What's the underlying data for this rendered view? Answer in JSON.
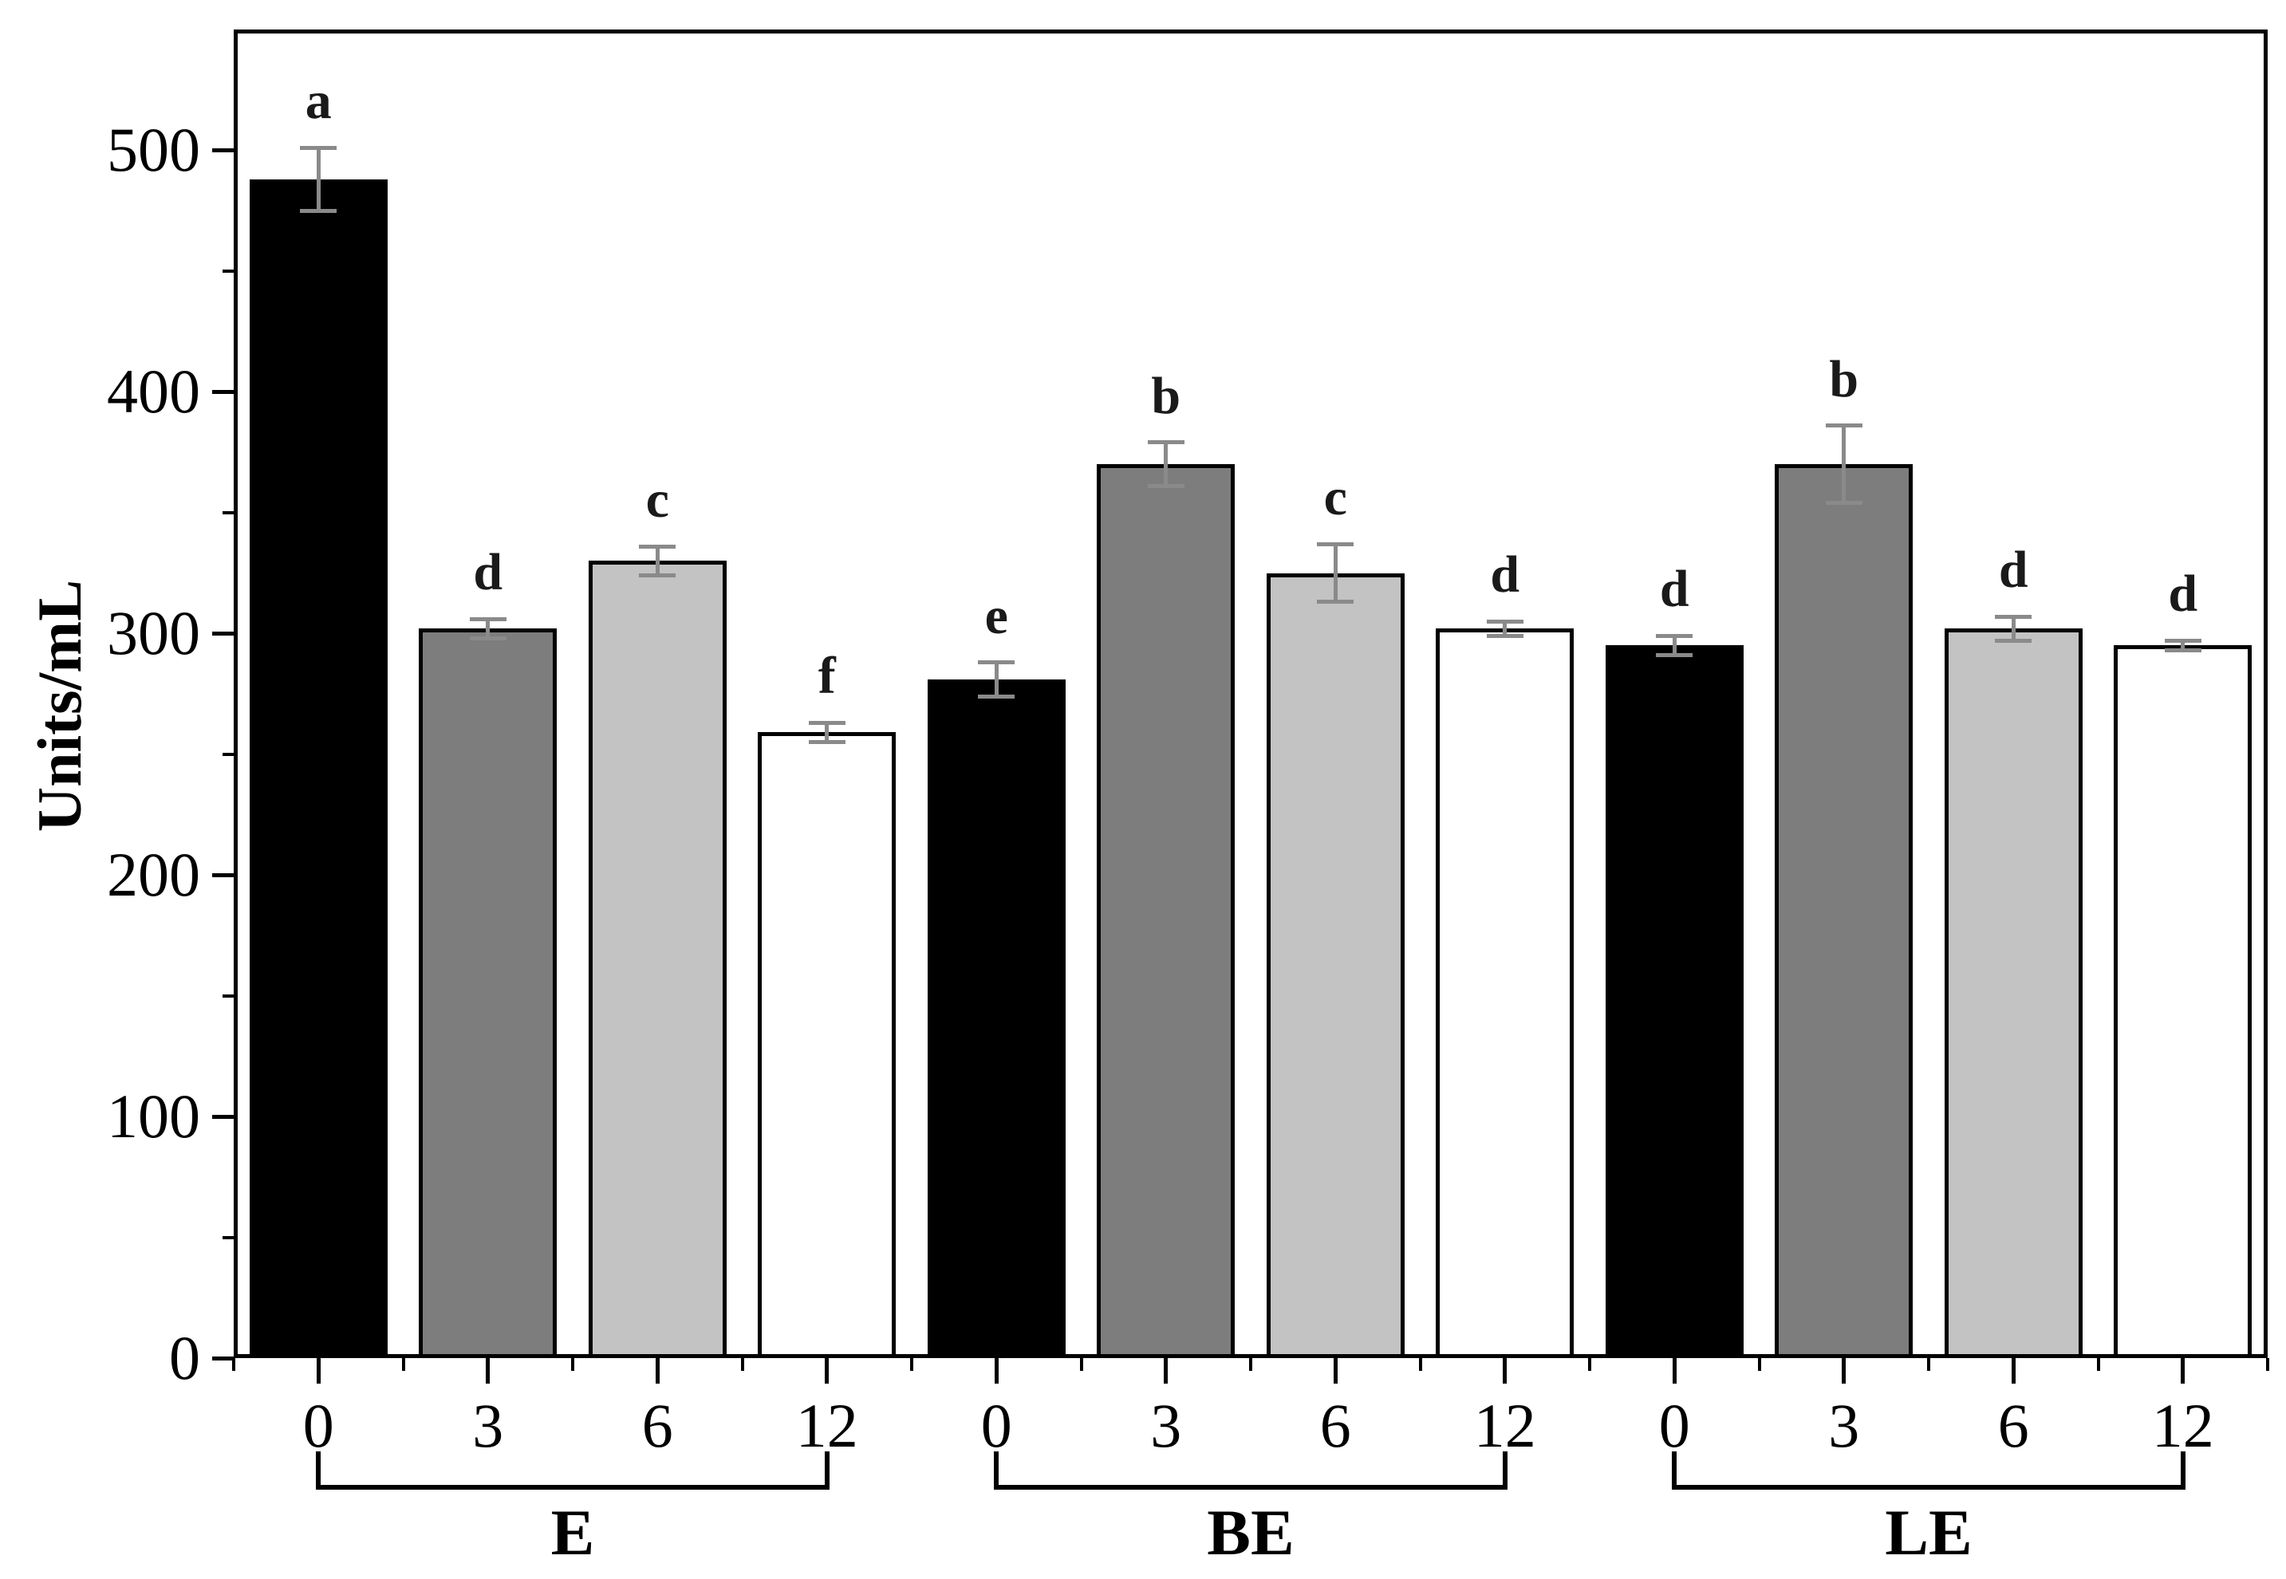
{
  "chart_data": {
    "type": "bar",
    "title": "",
    "ylabel": "Units/mL",
    "xlabel": "",
    "ylim": [
      0,
      550
    ],
    "yticks_major": [
      0,
      100,
      200,
      300,
      400,
      500
    ],
    "yticks_minor": [
      50,
      150,
      250,
      350,
      450
    ],
    "grid": "off",
    "legend": "none",
    "bar_categories_per_group": [
      "0",
      "3",
      "6",
      "12"
    ],
    "groups": [
      {
        "label": "E",
        "bars": [
          {
            "x": "0",
            "value": 488,
            "error": 13,
            "sig": "a",
            "fill": "#000000"
          },
          {
            "x": "3",
            "value": 302,
            "error": 4,
            "sig": "d",
            "fill": "#7d7d7d"
          },
          {
            "x": "6",
            "value": 330,
            "error": 6,
            "sig": "c",
            "fill": "#c3c3c3"
          },
          {
            "x": "12",
            "value": 259,
            "error": 4,
            "sig": "f",
            "fill": "#ffffff"
          }
        ]
      },
      {
        "label": "BE",
        "bars": [
          {
            "x": "0",
            "value": 281,
            "error": 7,
            "sig": "e",
            "fill": "#000000"
          },
          {
            "x": "3",
            "value": 370,
            "error": 9,
            "sig": "b",
            "fill": "#7d7d7d"
          },
          {
            "x": "6",
            "value": 325,
            "error": 12,
            "sig": "c",
            "fill": "#c3c3c3"
          },
          {
            "x": "12",
            "value": 302,
            "error": 3,
            "sig": "d",
            "fill": "#ffffff"
          }
        ]
      },
      {
        "label": "LE",
        "bars": [
          {
            "x": "0",
            "value": 295,
            "error": 4,
            "sig": "d",
            "fill": "#000000"
          },
          {
            "x": "3",
            "value": 370,
            "error": 16,
            "sig": "b",
            "fill": "#7d7d7d"
          },
          {
            "x": "6",
            "value": 302,
            "error": 5,
            "sig": "d",
            "fill": "#c3c3c3"
          },
          {
            "x": "12",
            "value": 295,
            "error": 2,
            "sig": "d",
            "fill": "#ffffff"
          }
        ]
      }
    ],
    "colors": {
      "background": "#ffffff",
      "axis": "#000000",
      "bar_border": "#000000",
      "error_bar": "#8a8a8a",
      "fill_time_0": "#000000",
      "fill_time_3": "#7d7d7d",
      "fill_time_6": "#c3c3c3",
      "fill_time_12": "#ffffff"
    }
  }
}
